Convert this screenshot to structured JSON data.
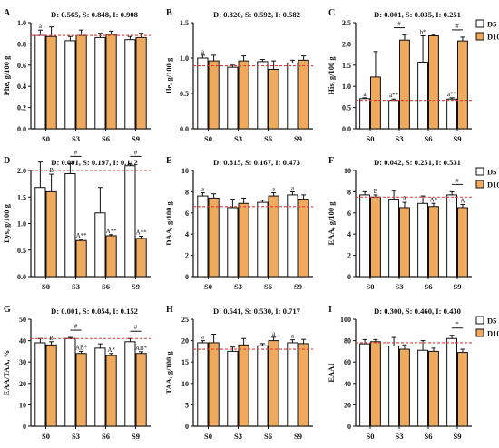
{
  "colors": {
    "d5": "#ffffff",
    "d10": "#f0aa5e",
    "axis": "#111111",
    "ref": "#e23b3b"
  },
  "legend": {
    "d5": "D5",
    "d10": "D10"
  },
  "chart_data": [
    {
      "type": "bar",
      "panel": "A",
      "title": "D: 0.565, S: 0.848, I: 0.908",
      "ylabel": "Phe, g/100 g",
      "categories": [
        "S0",
        "S3",
        "S6",
        "S9"
      ],
      "ylim": [
        0,
        1.0
      ],
      "yticks": [
        "0.0",
        "0.2",
        "0.4",
        "0.6",
        "0.8",
        "1.0"
      ],
      "ref": 0.88,
      "series": [
        {
          "name": "D5",
          "values": [
            0.88,
            0.83,
            0.86,
            0.84
          ],
          "err": [
            0.05,
            0.04,
            0.04,
            0.03
          ]
        },
        {
          "name": "D10",
          "values": [
            0.87,
            0.88,
            0.89,
            0.86
          ],
          "err": [
            0.09,
            0.05,
            0.03,
            0.04
          ]
        }
      ],
      "labels": [
        {
          "cat": 0,
          "s": 0,
          "text": "a"
        }
      ],
      "brackets": []
    },
    {
      "type": "bar",
      "panel": "B",
      "title": "D: 0.820, S: 0.592, I: 0.582",
      "ylabel": "Ile, g/100 g",
      "categories": [
        "S0",
        "S3",
        "S6",
        "S9"
      ],
      "ylim": [
        0,
        1.5
      ],
      "yticks": [
        "0.0",
        "0.5",
        "1.0",
        "1.5"
      ],
      "ref": 0.89,
      "series": [
        {
          "name": "D5",
          "values": [
            1.0,
            0.87,
            0.95,
            0.93
          ],
          "err": [
            0.04,
            0.03,
            0.03,
            0.04
          ]
        },
        {
          "name": "D10",
          "values": [
            0.96,
            0.96,
            0.84,
            0.97
          ],
          "err": [
            0.08,
            0.07,
            0.12,
            0.06
          ]
        }
      ],
      "labels": [
        {
          "cat": 0,
          "s": 0,
          "text": "a"
        }
      ],
      "brackets": []
    },
    {
      "type": "bar",
      "panel": "C",
      "title": "D: 0.001, S: 0.035, I: 0.251",
      "ylabel": "His, g/100 g",
      "categories": [
        "S0",
        "S3",
        "S6",
        "S9"
      ],
      "ylim": [
        0,
        2.5
      ],
      "yticks": [
        "0.0",
        "0.5",
        "1.0",
        "1.5",
        "2.0",
        "2.5"
      ],
      "ref": 0.67,
      "series": [
        {
          "name": "D5",
          "values": [
            0.71,
            0.67,
            1.57,
            0.7
          ],
          "err": [
            0.02,
            0.03,
            0.62,
            0.03
          ]
        },
        {
          "name": "D10",
          "values": [
            1.22,
            2.09,
            2.19,
            2.07
          ],
          "err": [
            0.6,
            0.12,
            0.03,
            0.09
          ]
        }
      ],
      "labels": [
        {
          "cat": 0,
          "s": 0,
          "text": "a"
        },
        {
          "cat": 1,
          "s": 0,
          "text": "a**"
        },
        {
          "cat": 2,
          "s": 0,
          "text": "b*"
        },
        {
          "cat": 3,
          "s": 0,
          "text": "a**"
        }
      ],
      "brackets": [
        {
          "cat": 1,
          "text": "#"
        },
        {
          "cat": 3,
          "text": "#"
        }
      ]
    },
    {
      "type": "bar",
      "panel": "D",
      "title": "D: 0.001, S: 0.197, I: 0.112",
      "ylabel": "Lys, g/100 g",
      "categories": [
        "S0",
        "S3",
        "S6",
        "S9"
      ],
      "ylim": [
        0,
        2.0
      ],
      "yticks": [
        "0.0",
        "0.5",
        "1.0",
        "1.5",
        "2.0"
      ],
      "ref": 2.0,
      "series": [
        {
          "name": "D5",
          "values": [
            1.68,
            1.94,
            1.2,
            2.09
          ],
          "err": [
            0.48,
            0.19,
            0.48,
            0.04
          ]
        },
        {
          "name": "D10",
          "values": [
            1.6,
            0.68,
            0.77,
            0.72
          ],
          "err": [
            0.33,
            0.02,
            0.02,
            0.04
          ]
        }
      ],
      "labels": [
        {
          "cat": 0,
          "s": 1,
          "text": "B"
        },
        {
          "cat": 1,
          "s": 1,
          "text": "A**"
        },
        {
          "cat": 2,
          "s": 1,
          "text": "A**"
        },
        {
          "cat": 3,
          "s": 1,
          "text": "A**"
        }
      ],
      "brackets": [
        {
          "cat": 1,
          "text": "#"
        },
        {
          "cat": 3,
          "text": "#"
        }
      ]
    },
    {
      "type": "bar",
      "panel": "E",
      "title": "D: 0.815, S: 0.167, I: 0.473",
      "ylabel": "DAA, g/100 g",
      "categories": [
        "S0",
        "S3",
        "S6",
        "S9"
      ],
      "ylim": [
        0,
        10
      ],
      "yticks": [
        "0",
        "2",
        "4",
        "6",
        "8",
        "10"
      ],
      "ref": 6.6,
      "series": [
        {
          "name": "D5",
          "values": [
            7.6,
            6.5,
            7.0,
            7.7
          ],
          "err": [
            0.3,
            0.8,
            0.2,
            0.3
          ]
        },
        {
          "name": "D10",
          "values": [
            7.4,
            6.9,
            7.6,
            7.3
          ],
          "err": [
            0.4,
            0.5,
            0.3,
            0.4
          ]
        }
      ],
      "labels": [
        {
          "cat": 0,
          "s": 0,
          "text": "a"
        },
        {
          "cat": 2,
          "s": 1,
          "text": "a"
        },
        {
          "cat": 3,
          "s": 0,
          "text": "a"
        }
      ],
      "brackets": []
    },
    {
      "type": "bar",
      "panel": "F",
      "title": "D: 0.042, S: 0.251, I: 0.531",
      "ylabel": "EAA, g/100 g",
      "categories": [
        "S0",
        "S3",
        "S6",
        "S9"
      ],
      "ylim": [
        0,
        10
      ],
      "yticks": [
        "0",
        "2",
        "4",
        "6",
        "8",
        "10"
      ],
      "ref": 7.5,
      "series": [
        {
          "name": "D5",
          "values": [
            7.7,
            7.3,
            6.9,
            7.7
          ],
          "err": [
            0.3,
            0.8,
            0.7,
            0.3
          ]
        },
        {
          "name": "D10",
          "values": [
            7.5,
            6.5,
            6.6,
            6.5
          ],
          "err": [
            0.2,
            0.5,
            0.3,
            0.3
          ]
        }
      ],
      "labels": [
        {
          "cat": 0,
          "s": 1,
          "text": "B"
        },
        {
          "cat": 1,
          "s": 1,
          "text": "A"
        },
        {
          "cat": 2,
          "s": 1,
          "text": "A*"
        },
        {
          "cat": 3,
          "s": 1,
          "text": "A"
        }
      ],
      "brackets": [
        {
          "cat": 3,
          "text": "#"
        }
      ]
    },
    {
      "type": "bar",
      "panel": "G",
      "title": "D: 0.001, S: 0.054, I: 0.152",
      "ylabel": "EAA/TAA, %",
      "categories": [
        "S0",
        "S3",
        "S6",
        "S9"
      ],
      "ylim": [
        0,
        50
      ],
      "yticks": [
        "0",
        "10",
        "20",
        "30",
        "40",
        "50"
      ],
      "ref": 41,
      "series": [
        {
          "name": "D5",
          "values": [
            39,
            41,
            36.5,
            39.5
          ],
          "err": [
            2,
            0.5,
            2,
            1.5
          ]
        },
        {
          "name": "D10",
          "values": [
            38,
            34,
            33,
            34
          ],
          "err": [
            1.5,
            1,
            1,
            0.8
          ]
        }
      ],
      "labels": [
        {
          "cat": 0,
          "s": 1,
          "text": "B"
        },
        {
          "cat": 1,
          "s": 1,
          "text": "AB*"
        },
        {
          "cat": 2,
          "s": 1,
          "text": "A*"
        },
        {
          "cat": 3,
          "s": 1,
          "text": "AB*"
        }
      ],
      "brackets": [
        {
          "cat": 1,
          "text": "#"
        },
        {
          "cat": 3,
          "text": "#"
        }
      ]
    },
    {
      "type": "bar",
      "panel": "H",
      "title": "D: 0.541, S: 0.530, I: 0.717",
      "ylabel": "TAA, g/100 g",
      "categories": [
        "S0",
        "S3",
        "S6",
        "S9"
      ],
      "ylim": [
        0,
        25
      ],
      "yticks": [
        "0",
        "5",
        "10",
        "15",
        "20",
        "25"
      ],
      "ref": 18,
      "series": [
        {
          "name": "D5",
          "values": [
            19.5,
            17.5,
            18.8,
            19.5
          ],
          "err": [
            0.5,
            1,
            0.5,
            0.7
          ]
        },
        {
          "name": "D10",
          "values": [
            19.5,
            19,
            20,
            19.3
          ],
          "err": [
            2,
            1.5,
            0.8,
            1
          ]
        }
      ],
      "labels": [
        {
          "cat": 0,
          "s": 0,
          "text": "a"
        },
        {
          "cat": 2,
          "s": 1,
          "text": "a"
        },
        {
          "cat": 3,
          "s": 0,
          "text": "a"
        }
      ],
      "brackets": []
    },
    {
      "type": "bar",
      "panel": "I",
      "title": "D: 0.300, S: 0.460, I: 0.430",
      "ylabel": "EAAI",
      "categories": [
        "S0",
        "S3",
        "S6",
        "S9"
      ],
      "ylim": [
        0,
        100
      ],
      "yticks": [
        "0",
        "20",
        "40",
        "60",
        "80",
        "100"
      ],
      "ref": 78,
      "series": [
        {
          "name": "D5",
          "values": [
            77,
            75,
            71,
            82
          ],
          "err": [
            4,
            8,
            9,
            3
          ]
        },
        {
          "name": "D10",
          "values": [
            79,
            72,
            70,
            69
          ],
          "err": [
            2,
            4,
            3,
            3
          ]
        }
      ],
      "labels": [],
      "brackets": [
        {
          "cat": 3,
          "text": "*"
        }
      ]
    }
  ]
}
